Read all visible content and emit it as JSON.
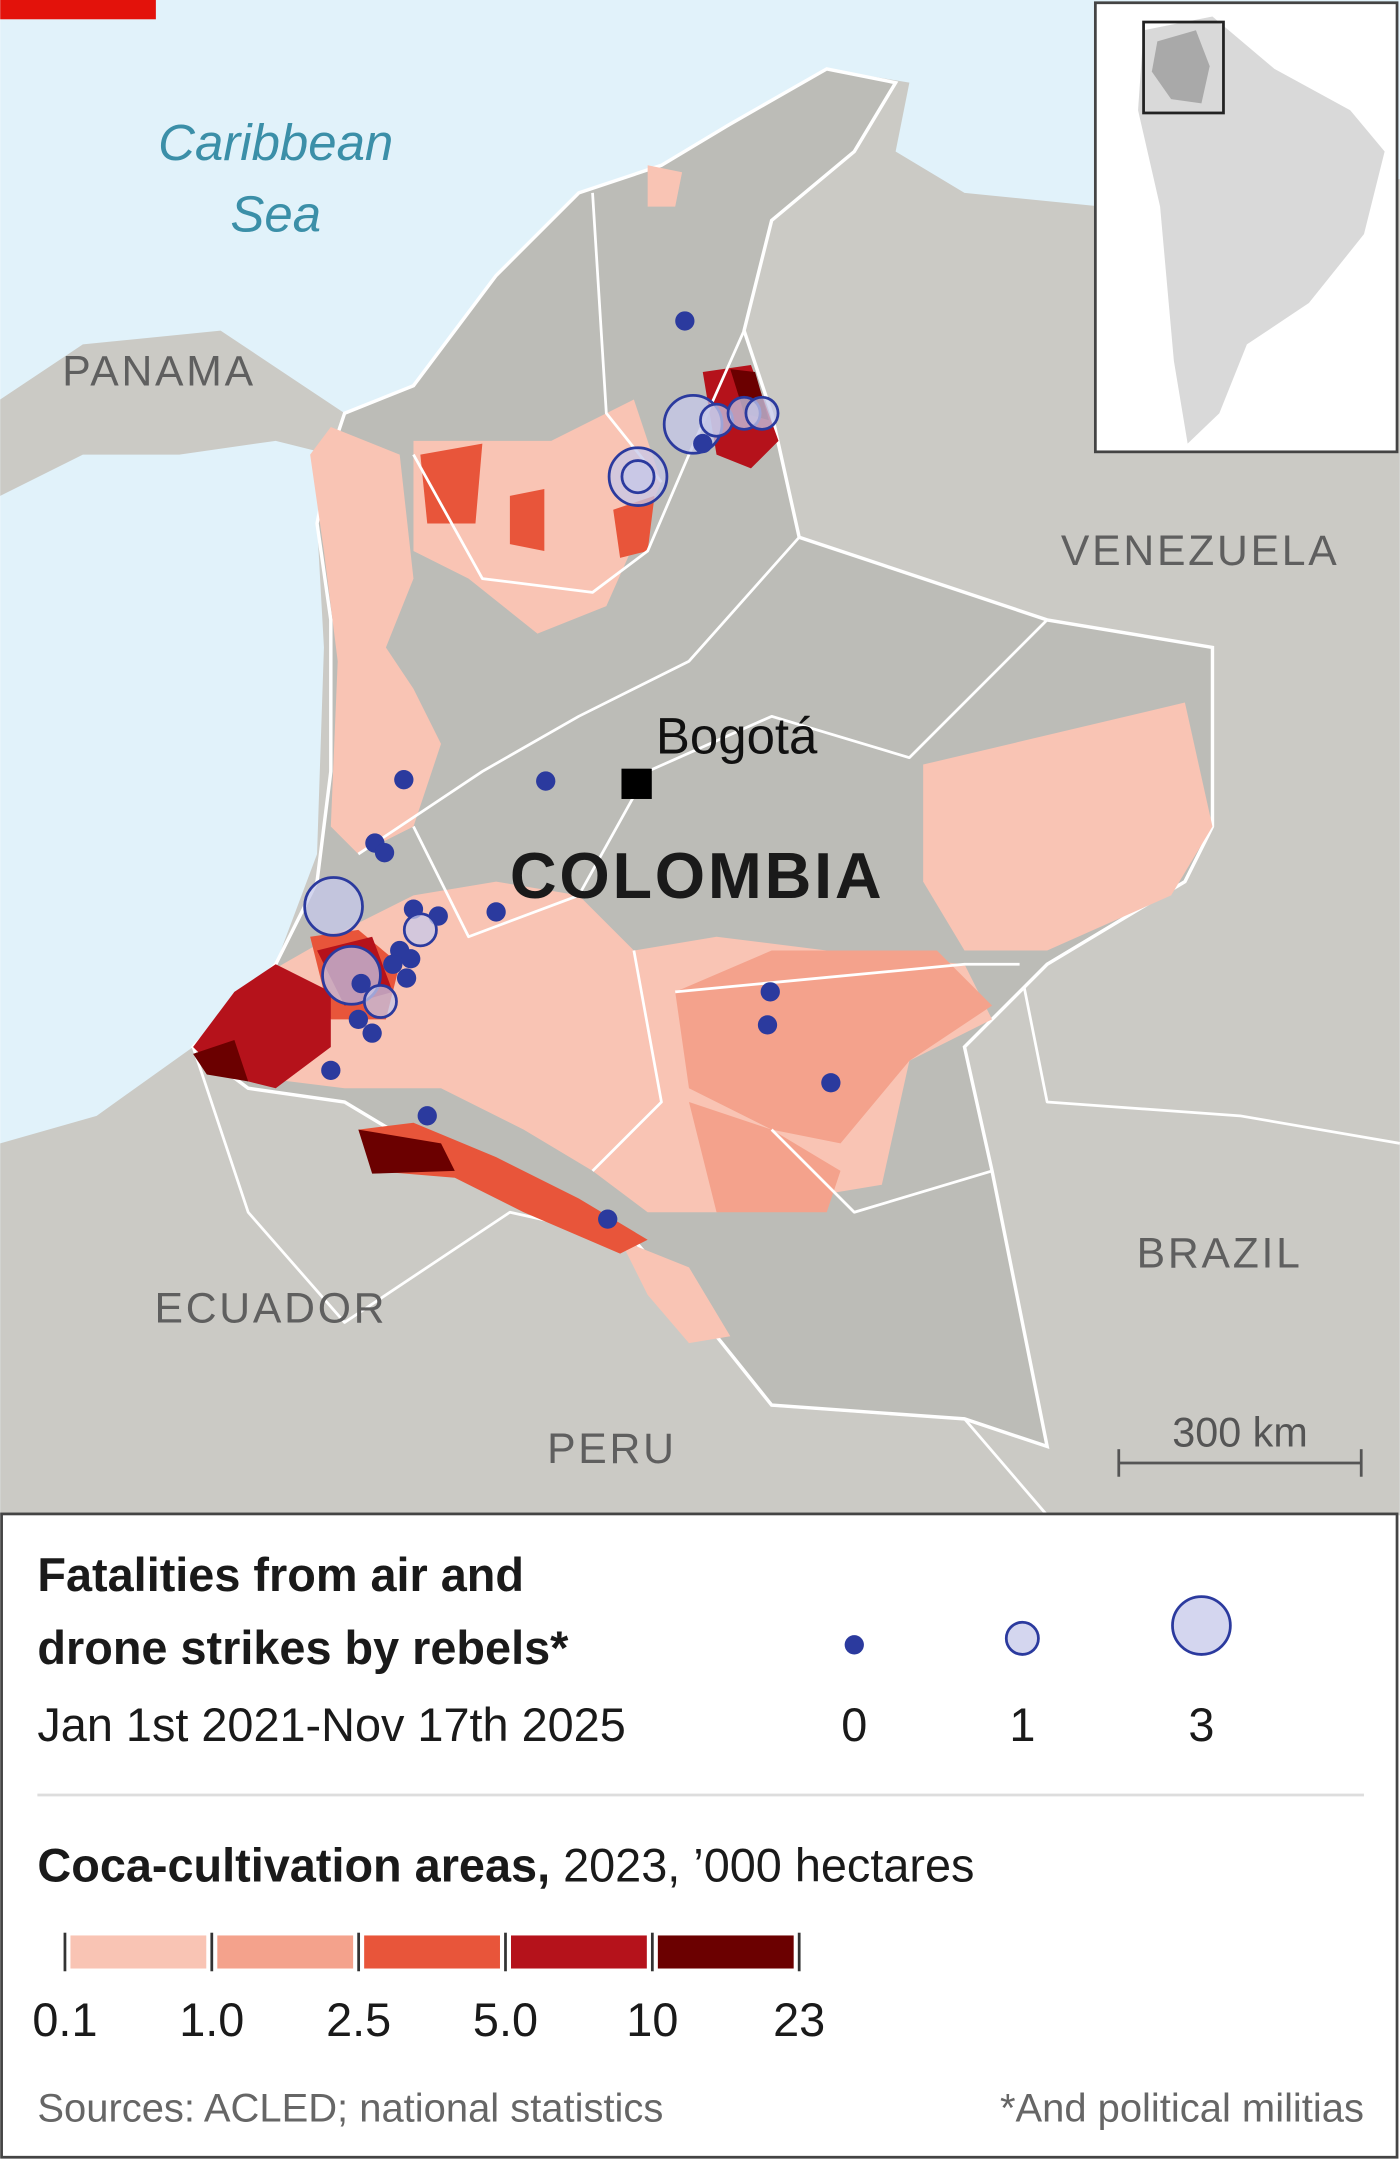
{
  "labels": {
    "sea": [
      "Caribbean",
      "Sea"
    ],
    "panama": "PANAMA",
    "venezuela": "VENEZUELA",
    "brazil": "BRAZIL",
    "ecuador": "ECUADOR",
    "peru": "PERU",
    "capital": "Bogotá",
    "country": "COLOMBIA",
    "scale": "300 km"
  },
  "strikes": {
    "title": [
      "Fatalities from air and",
      "drone strikes by rebels*"
    ],
    "subtitle": "Jan 1st 2021-Nov 17th 2025",
    "legend_values": [
      0,
      1,
      3
    ],
    "color": "#2b3a9e",
    "fill_multi": "#c5c8ea",
    "fatalities": [
      0,
      3,
      1,
      1,
      1,
      0,
      3,
      1,
      0,
      0,
      0,
      0,
      3,
      0,
      0,
      1,
      0,
      3,
      1,
      0,
      0,
      0,
      0,
      0,
      0,
      0,
      0,
      0,
      0,
      0,
      0,
      0
    ]
  },
  "coca": {
    "title_bold": "Coca-cultivation areas,",
    "title_rest": " 2023, ’000 hectares",
    "ticks": [
      0.1,
      {
        "value": 1.0,
        "label": "1.0"
      },
      2.5,
      {
        "value": 5.0,
        "label": "5.0"
      },
      10,
      23
    ],
    "colors": [
      "#f9c4b4",
      "#f4a28c",
      "#e8553a",
      "#b5121b",
      "#6b0000"
    ]
  },
  "sources": "Sources: ACLED; national statistics",
  "footnote": "*And political militias"
}
